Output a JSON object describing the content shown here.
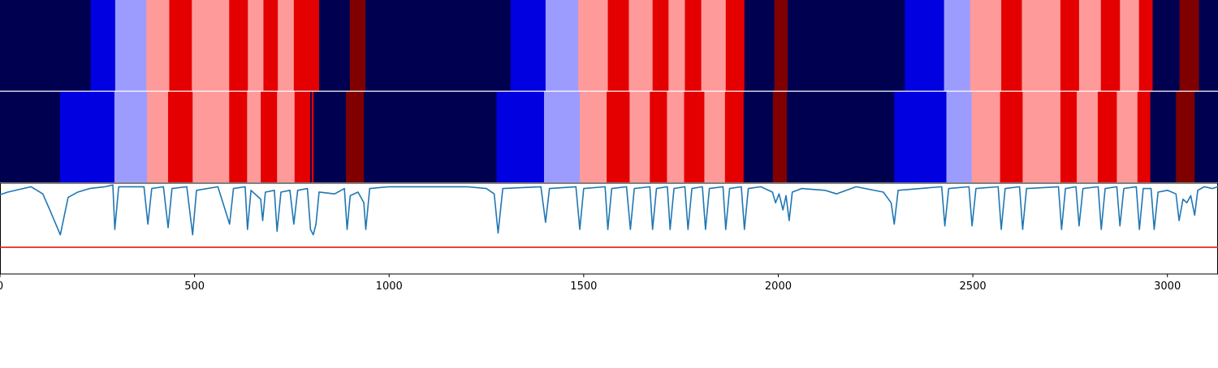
{
  "chart_data": {
    "type": "heatmap",
    "title": "",
    "xlabel": "",
    "ylabel": "",
    "xlim": [
      0,
      3130
    ],
    "x_ticks": [
      0,
      500,
      1000,
      1500,
      2000,
      2500,
      3000
    ],
    "x_tick_labels": [
      "0",
      "500",
      "1000",
      "1500",
      "2000",
      "2500",
      "3000"
    ],
    "grid": false,
    "legend": "none",
    "segment_colors": {
      "navy": "#000050",
      "blue": "#0000e0",
      "light-blue": "#9c9cff",
      "pink": "#ff9a9a",
      "red": "#e40000",
      "dark-red": "#800000"
    },
    "rows": [
      {
        "segments": [
          {
            "start": 0,
            "end": 233,
            "label": "navy"
          },
          {
            "start": 233,
            "end": 296,
            "label": "blue"
          },
          {
            "start": 296,
            "end": 376,
            "label": "light-blue"
          },
          {
            "start": 376,
            "end": 435,
            "label": "pink"
          },
          {
            "start": 435,
            "end": 493,
            "label": "red"
          },
          {
            "start": 493,
            "end": 589,
            "label": "pink"
          },
          {
            "start": 589,
            "end": 637,
            "label": "red"
          },
          {
            "start": 637,
            "end": 677,
            "label": "pink"
          },
          {
            "start": 677,
            "end": 714,
            "label": "red"
          },
          {
            "start": 714,
            "end": 755,
            "label": "pink"
          },
          {
            "start": 755,
            "end": 820,
            "label": "red"
          },
          {
            "start": 820,
            "end": 899,
            "label": "navy"
          },
          {
            "start": 899,
            "end": 939,
            "label": "dark-red"
          },
          {
            "start": 939,
            "end": 1312,
            "label": "navy"
          },
          {
            "start": 1312,
            "end": 1402,
            "label": "blue"
          },
          {
            "start": 1402,
            "end": 1486,
            "label": "light-blue"
          },
          {
            "start": 1486,
            "end": 1562,
            "label": "pink"
          },
          {
            "start": 1562,
            "end": 1616,
            "label": "red"
          },
          {
            "start": 1616,
            "end": 1677,
            "label": "pink"
          },
          {
            "start": 1677,
            "end": 1718,
            "label": "red"
          },
          {
            "start": 1718,
            "end": 1760,
            "label": "pink"
          },
          {
            "start": 1760,
            "end": 1802,
            "label": "red"
          },
          {
            "start": 1802,
            "end": 1865,
            "label": "pink"
          },
          {
            "start": 1865,
            "end": 1913,
            "label": "red"
          },
          {
            "start": 1913,
            "end": 1990,
            "label": "navy"
          },
          {
            "start": 1990,
            "end": 2024,
            "label": "dark-red"
          },
          {
            "start": 2024,
            "end": 2325,
            "label": "navy"
          },
          {
            "start": 2325,
            "end": 2426,
            "label": "blue"
          },
          {
            "start": 2426,
            "end": 2493,
            "label": "light-blue"
          },
          {
            "start": 2493,
            "end": 2573,
            "label": "pink"
          },
          {
            "start": 2573,
            "end": 2626,
            "label": "red"
          },
          {
            "start": 2626,
            "end": 2725,
            "label": "pink"
          },
          {
            "start": 2725,
            "end": 2773,
            "label": "red"
          },
          {
            "start": 2773,
            "end": 2829,
            "label": "pink"
          },
          {
            "start": 2829,
            "end": 2878,
            "label": "red"
          },
          {
            "start": 2878,
            "end": 2927,
            "label": "pink"
          },
          {
            "start": 2927,
            "end": 2962,
            "label": "red"
          },
          {
            "start": 2962,
            "end": 3031,
            "label": "navy"
          },
          {
            "start": 3031,
            "end": 3081,
            "label": "dark-red"
          },
          {
            "start": 3081,
            "end": 3130,
            "label": "navy"
          }
        ]
      },
      {
        "segments": [
          {
            "start": 0,
            "end": 154,
            "label": "navy"
          },
          {
            "start": 154,
            "end": 294,
            "label": "blue"
          },
          {
            "start": 294,
            "end": 378,
            "label": "light-blue"
          },
          {
            "start": 378,
            "end": 432,
            "label": "pink"
          },
          {
            "start": 432,
            "end": 495,
            "label": "red"
          },
          {
            "start": 495,
            "end": 589,
            "label": "pink"
          },
          {
            "start": 589,
            "end": 635,
            "label": "red"
          },
          {
            "start": 635,
            "end": 670,
            "label": "pink"
          },
          {
            "start": 670,
            "end": 712,
            "label": "red"
          },
          {
            "start": 712,
            "end": 757,
            "label": "pink"
          },
          {
            "start": 757,
            "end": 797,
            "label": "red"
          },
          {
            "start": 797,
            "end": 801,
            "label": "navy"
          },
          {
            "start": 801,
            "end": 806,
            "label": "red"
          },
          {
            "start": 806,
            "end": 889,
            "label": "navy"
          },
          {
            "start": 889,
            "end": 935,
            "label": "dark-red"
          },
          {
            "start": 935,
            "end": 1276,
            "label": "navy"
          },
          {
            "start": 1276,
            "end": 1398,
            "label": "blue"
          },
          {
            "start": 1398,
            "end": 1490,
            "label": "light-blue"
          },
          {
            "start": 1490,
            "end": 1559,
            "label": "pink"
          },
          {
            "start": 1559,
            "end": 1618,
            "label": "red"
          },
          {
            "start": 1618,
            "end": 1670,
            "label": "pink"
          },
          {
            "start": 1670,
            "end": 1714,
            "label": "red"
          },
          {
            "start": 1714,
            "end": 1758,
            "label": "pink"
          },
          {
            "start": 1758,
            "end": 1810,
            "label": "red"
          },
          {
            "start": 1810,
            "end": 1863,
            "label": "pink"
          },
          {
            "start": 1863,
            "end": 1911,
            "label": "red"
          },
          {
            "start": 1911,
            "end": 1986,
            "label": "navy"
          },
          {
            "start": 1986,
            "end": 2022,
            "label": "dark-red"
          },
          {
            "start": 2022,
            "end": 2298,
            "label": "navy"
          },
          {
            "start": 2298,
            "end": 2432,
            "label": "blue"
          },
          {
            "start": 2432,
            "end": 2497,
            "label": "light-blue"
          },
          {
            "start": 2497,
            "end": 2570,
            "label": "pink"
          },
          {
            "start": 2570,
            "end": 2628,
            "label": "red"
          },
          {
            "start": 2628,
            "end": 2725,
            "label": "pink"
          },
          {
            "start": 2725,
            "end": 2767,
            "label": "red"
          },
          {
            "start": 2767,
            "end": 2821,
            "label": "pink"
          },
          {
            "start": 2821,
            "end": 2870,
            "label": "red"
          },
          {
            "start": 2870,
            "end": 2923,
            "label": "pink"
          },
          {
            "start": 2923,
            "end": 2956,
            "label": "red"
          },
          {
            "start": 2956,
            "end": 3022,
            "label": "navy"
          },
          {
            "start": 3022,
            "end": 3070,
            "label": "dark-red"
          },
          {
            "start": 3070,
            "end": 3130,
            "label": "navy"
          }
        ]
      }
    ],
    "signal": {
      "color": "#1f77b4",
      "ylim": [
        -0.5,
        0.01
      ],
      "threshold": -0.35,
      "threshold_color": "#e41a1c",
      "points": [
        [
          0,
          -0.055
        ],
        [
          20,
          -0.04
        ],
        [
          40,
          -0.03
        ],
        [
          80,
          -0.01
        ],
        [
          110,
          -0.05
        ],
        [
          130,
          -0.15
        ],
        [
          155,
          -0.28
        ],
        [
          175,
          -0.07
        ],
        [
          200,
          -0.04
        ],
        [
          230,
          -0.02
        ],
        [
          270,
          -0.01
        ],
        [
          290,
          -0.0
        ],
        [
          295,
          -0.25
        ],
        [
          305,
          -0.01
        ],
        [
          370,
          -0.01
        ],
        [
          380,
          -0.22
        ],
        [
          390,
          -0.02
        ],
        [
          420,
          -0.01
        ],
        [
          432,
          -0.24
        ],
        [
          442,
          -0.02
        ],
        [
          480,
          -0.01
        ],
        [
          495,
          -0.28
        ],
        [
          505,
          -0.03
        ],
        [
          560,
          -0.01
        ],
        [
          590,
          -0.22
        ],
        [
          600,
          -0.02
        ],
        [
          630,
          -0.01
        ],
        [
          636,
          -0.25
        ],
        [
          645,
          -0.03
        ],
        [
          670,
          -0.08
        ],
        [
          675,
          -0.2
        ],
        [
          682,
          -0.04
        ],
        [
          705,
          -0.03
        ],
        [
          712,
          -0.26
        ],
        [
          722,
          -0.04
        ],
        [
          745,
          -0.03
        ],
        [
          755,
          -0.22
        ],
        [
          765,
          -0.03
        ],
        [
          790,
          -0.02
        ],
        [
          798,
          -0.25
        ],
        [
          805,
          -0.28
        ],
        [
          812,
          -0.22
        ],
        [
          820,
          -0.04
        ],
        [
          860,
          -0.05
        ],
        [
          885,
          -0.02
        ],
        [
          892,
          -0.25
        ],
        [
          900,
          -0.06
        ],
        [
          920,
          -0.04
        ],
        [
          935,
          -0.1
        ],
        [
          940,
          -0.25
        ],
        [
          950,
          -0.02
        ],
        [
          1000,
          -0.01
        ],
        [
          1100,
          -0.01
        ],
        [
          1200,
          -0.01
        ],
        [
          1250,
          -0.02
        ],
        [
          1270,
          -0.05
        ],
        [
          1280,
          -0.27
        ],
        [
          1292,
          -0.02
        ],
        [
          1390,
          -0.01
        ],
        [
          1402,
          -0.21
        ],
        [
          1412,
          -0.02
        ],
        [
          1480,
          -0.01
        ],
        [
          1490,
          -0.25
        ],
        [
          1500,
          -0.02
        ],
        [
          1555,
          -0.01
        ],
        [
          1562,
          -0.25
        ],
        [
          1572,
          -0.02
        ],
        [
          1610,
          -0.01
        ],
        [
          1620,
          -0.25
        ],
        [
          1630,
          -0.02
        ],
        [
          1670,
          -0.01
        ],
        [
          1677,
          -0.25
        ],
        [
          1687,
          -0.02
        ],
        [
          1715,
          -0.01
        ],
        [
          1722,
          -0.25
        ],
        [
          1732,
          -0.02
        ],
        [
          1760,
          -0.01
        ],
        [
          1768,
          -0.25
        ],
        [
          1778,
          -0.02
        ],
        [
          1805,
          -0.01
        ],
        [
          1813,
          -0.25
        ],
        [
          1823,
          -0.02
        ],
        [
          1858,
          -0.01
        ],
        [
          1865,
          -0.25
        ],
        [
          1875,
          -0.02
        ],
        [
          1905,
          -0.01
        ],
        [
          1913,
          -0.25
        ],
        [
          1923,
          -0.02
        ],
        [
          1955,
          -0.01
        ],
        [
          1985,
          -0.04
        ],
        [
          1993,
          -0.1
        ],
        [
          2002,
          -0.05
        ],
        [
          2012,
          -0.14
        ],
        [
          2020,
          -0.06
        ],
        [
          2028,
          -0.2
        ],
        [
          2036,
          -0.04
        ],
        [
          2060,
          -0.02
        ],
        [
          2120,
          -0.03
        ],
        [
          2150,
          -0.05
        ],
        [
          2200,
          -0.01
        ],
        [
          2270,
          -0.04
        ],
        [
          2290,
          -0.1
        ],
        [
          2298,
          -0.22
        ],
        [
          2308,
          -0.03
        ],
        [
          2420,
          -0.01
        ],
        [
          2428,
          -0.23
        ],
        [
          2438,
          -0.02
        ],
        [
          2490,
          -0.01
        ],
        [
          2498,
          -0.23
        ],
        [
          2508,
          -0.02
        ],
        [
          2565,
          -0.01
        ],
        [
          2573,
          -0.25
        ],
        [
          2583,
          -0.02
        ],
        [
          2620,
          -0.01
        ],
        [
          2628,
          -0.25
        ],
        [
          2638,
          -0.02
        ],
        [
          2720,
          -0.01
        ],
        [
          2728,
          -0.25
        ],
        [
          2738,
          -0.02
        ],
        [
          2765,
          -0.01
        ],
        [
          2773,
          -0.23
        ],
        [
          2783,
          -0.02
        ],
        [
          2822,
          -0.01
        ],
        [
          2830,
          -0.25
        ],
        [
          2840,
          -0.02
        ],
        [
          2870,
          -0.01
        ],
        [
          2878,
          -0.23
        ],
        [
          2888,
          -0.02
        ],
        [
          2920,
          -0.01
        ],
        [
          2928,
          -0.25
        ],
        [
          2938,
          -0.02
        ],
        [
          2958,
          -0.02
        ],
        [
          2966,
          -0.25
        ],
        [
          2976,
          -0.04
        ],
        [
          3000,
          -0.03
        ],
        [
          3022,
          -0.05
        ],
        [
          3030,
          -0.2
        ],
        [
          3040,
          -0.08
        ],
        [
          3050,
          -0.1
        ],
        [
          3060,
          -0.06
        ],
        [
          3070,
          -0.17
        ],
        [
          3078,
          -0.03
        ],
        [
          3095,
          -0.01
        ],
        [
          3115,
          -0.02
        ],
        [
          3130,
          -0.01
        ]
      ]
    }
  }
}
